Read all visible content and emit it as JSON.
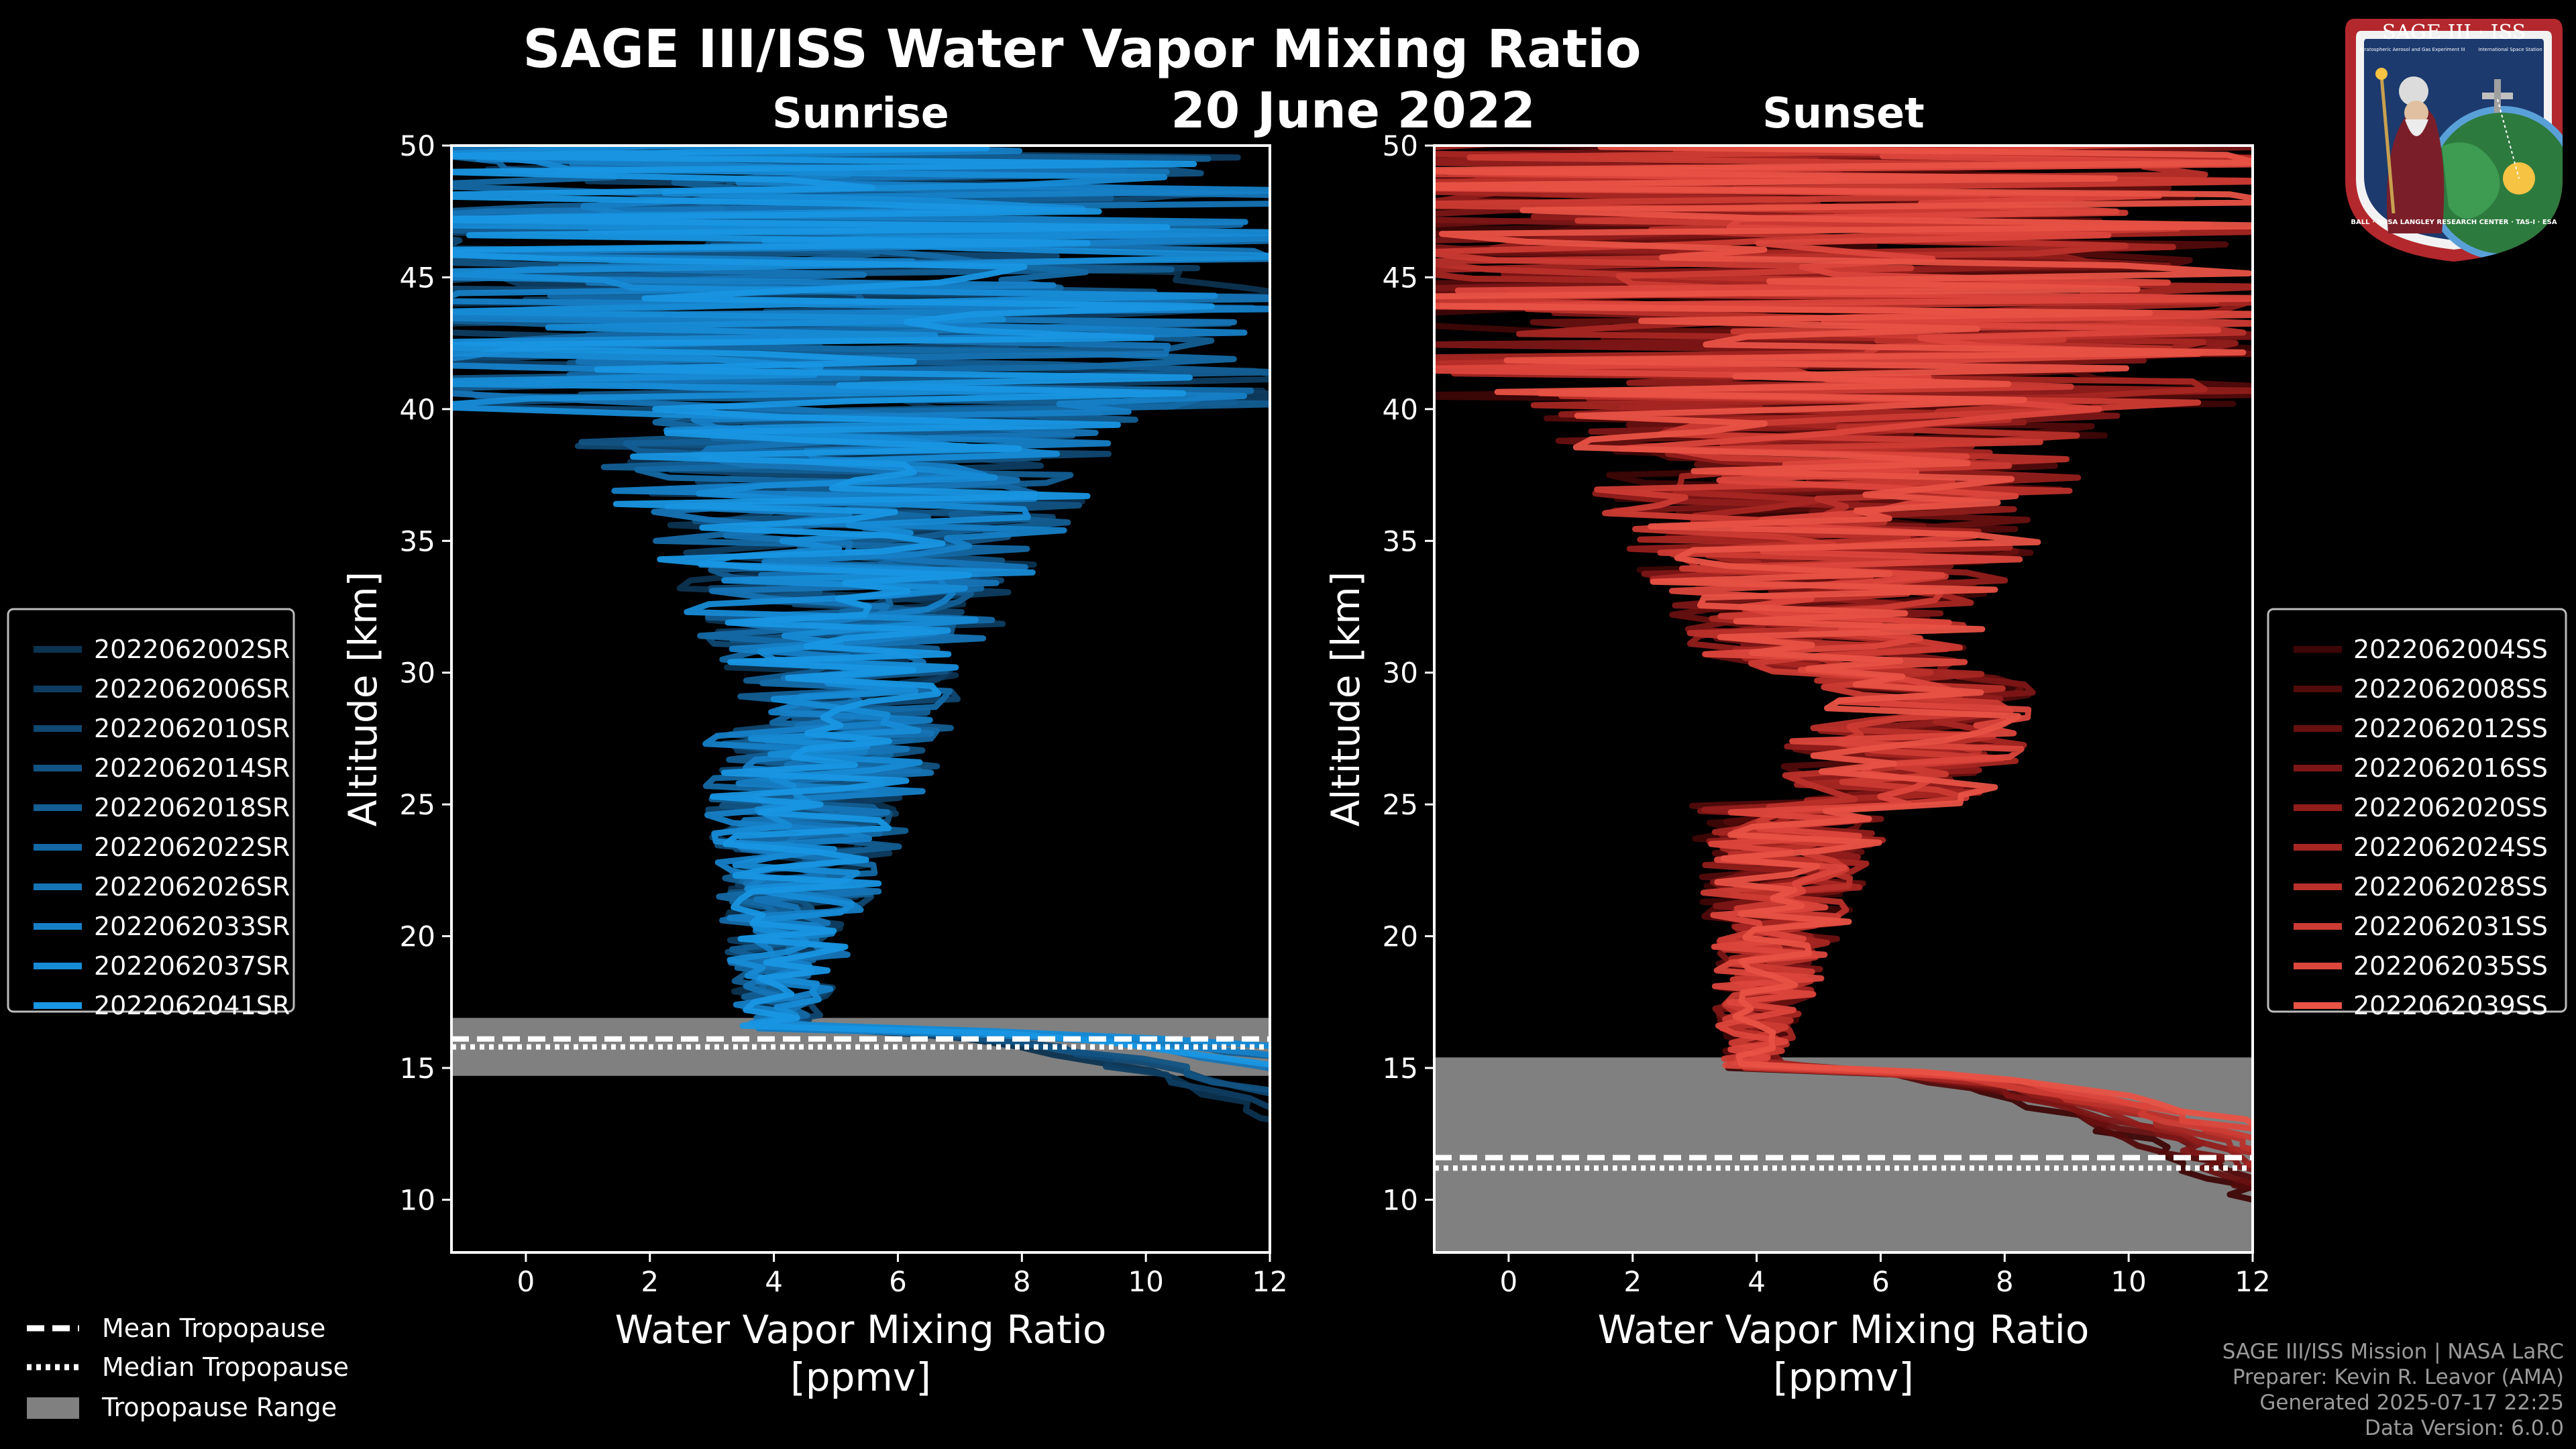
{
  "chart_data": {
    "title": "SAGE III/ISS Water Vapor Mixing Ratio",
    "date": "20 June 2022",
    "panels": [
      {
        "type": "line",
        "title": "Sunrise",
        "xlabel": "Water Vapor Mixing Ratio",
        "xunits": "[ppmv]",
        "ylabel": "Altitude [km]",
        "xlim": [
          -1.2,
          12
        ],
        "ylim": [
          8,
          50
        ],
        "xticks": [
          0,
          2,
          4,
          6,
          8,
          10,
          12
        ],
        "yticks": [
          10,
          15,
          20,
          25,
          30,
          35,
          40,
          45,
          50
        ],
        "tropopause": {
          "range": [
            14.7,
            16.9
          ],
          "mean": 16.1,
          "median": 15.8
        },
        "legend_position": "left",
        "series": [
          {
            "name": "2022062002SR",
            "color": "#0c3350",
            "seed": 11
          },
          {
            "name": "2022062006SR",
            "color": "#0e3d61",
            "seed": 23
          },
          {
            "name": "2022062010SR",
            "color": "#104872",
            "seed": 37
          },
          {
            "name": "2022062014SR",
            "color": "#125383",
            "seed": 41
          },
          {
            "name": "2022062018SR",
            "color": "#135e94",
            "seed": 53
          },
          {
            "name": "2022062022SR",
            "color": "#1469a5",
            "seed": 67
          },
          {
            "name": "2022062026SR",
            "color": "#1674b6",
            "seed": 71
          },
          {
            "name": "2022062033SR",
            "color": "#1680c7",
            "seed": 83
          },
          {
            "name": "2022062037SR",
            "color": "#178bd6",
            "seed": 97
          },
          {
            "name": "2022062041SR",
            "color": "#1896e3",
            "seed": 101
          }
        ]
      },
      {
        "type": "line",
        "title": "Sunset",
        "xlabel": "Water Vapor Mixing Ratio",
        "xunits": "[ppmv]",
        "ylabel": "Altitude [km]",
        "xlim": [
          -1.2,
          12
        ],
        "ylim": [
          8,
          50
        ],
        "xticks": [
          0,
          2,
          4,
          6,
          8,
          10,
          12
        ],
        "yticks": [
          10,
          15,
          20,
          25,
          30,
          35,
          40,
          45,
          50
        ],
        "tropopause": {
          "range": [
            8,
            15.4
          ],
          "mean": 11.6,
          "median": 11.2
        },
        "legend_position": "right",
        "series": [
          {
            "name": "2022062004SS",
            "color": "#3d0606",
            "seed": 13
          },
          {
            "name": "2022062008SS",
            "color": "#520b0b",
            "seed": 29
          },
          {
            "name": "2022062012SS",
            "color": "#671010",
            "seed": 31
          },
          {
            "name": "2022062016SS",
            "color": "#7c1616",
            "seed": 43
          },
          {
            "name": "2022062020SS",
            "color": "#911d1b",
            "seed": 59
          },
          {
            "name": "2022062024SS",
            "color": "#a62622",
            "seed": 61
          },
          {
            "name": "2022062028SS",
            "color": "#ba302a",
            "seed": 73
          },
          {
            "name": "2022062031SS",
            "color": "#cc3b33",
            "seed": 79
          },
          {
            "name": "2022062035SS",
            "color": "#dc463c",
            "seed": 89
          },
          {
            "name": "2022062039SS",
            "color": "#e85245",
            "seed": 103
          }
        ]
      }
    ],
    "tropopause_legend": [
      "Mean Tropopause",
      "Median Tropopause",
      "Tropopause Range"
    ]
  },
  "logo": {
    "title": "SAGE III · ISS",
    "subtitle_left": "Stratospheric Aerosol and Gas Experiment III",
    "subtitle_right": "International Space Station",
    "ring_text": "BALL · NASA LANGLEY RESEARCH CENTER · TAS-I · ESA"
  },
  "footer": {
    "line1": "SAGE III/ISS Mission | NASA LaRC",
    "line2": "Preparer: Kevin R. Leavor (AMA)",
    "line3": "Generated 2025-07-17 22:25",
    "line4": "Data Version: 6.0.0"
  }
}
